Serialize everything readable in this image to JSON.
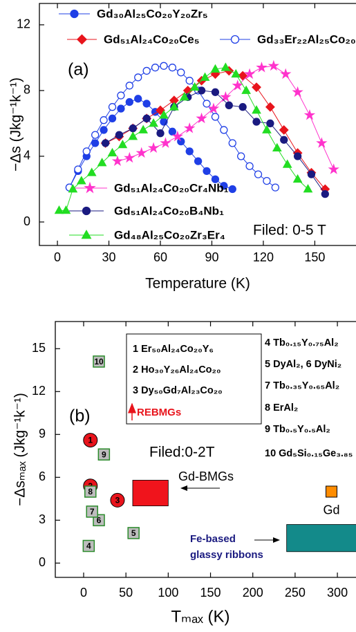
{
  "chart_data": [
    {
      "type": "line",
      "xlabel": "Temperature (K)",
      "ylabel": "−Δs (Jkg⁻¹k⁻¹)",
      "annotations": [
        "(a)",
        "Filed: 0-5 T"
      ],
      "xlim": [
        -10.5,
        174
      ],
      "ylim": [
        -1.43,
        13.3
      ],
      "xticks": [
        0,
        30,
        60,
        90,
        120,
        150
      ],
      "yticks": [
        0,
        4,
        8,
        12
      ],
      "series": [
        {
          "name": "Gd₃₀Al₂₅Co₂₀Y₂₀Zr₅",
          "color": "#1f3fe6",
          "marker": "circle",
          "filled": true,
          "x": [
            7,
            12,
            17,
            22,
            27,
            32,
            37,
            42,
            47,
            52,
            57,
            62,
            67,
            72,
            77,
            82,
            87,
            92,
            97,
            102
          ],
          "values": [
            2.1,
            3.1,
            4.0,
            4.8,
            5.6,
            6.3,
            6.9,
            7.3,
            7.5,
            7.2,
            6.7,
            6.1,
            5.5,
            4.9,
            4.3,
            3.7,
            3.1,
            2.6,
            2.2,
            2.0
          ]
        },
        {
          "name": "Gd₅₁Al₂₄Co₂₀Ce₅",
          "color": "#e8141c",
          "marker": "diamond",
          "filled": true,
          "x": [
            28,
            36,
            44,
            52,
            60,
            68,
            76,
            84,
            92,
            100,
            108,
            116,
            124,
            132,
            140,
            148,
            156
          ],
          "values": [
            4.8,
            5.2,
            5.7,
            6.3,
            6.8,
            7.4,
            8.0,
            8.6,
            9.0,
            9.2,
            8.9,
            8.2,
            7.0,
            5.6,
            4.2,
            3.0,
            2.0
          ]
        },
        {
          "name": "Gd₃₃Er₂₂Al₂₅Co₂₀",
          "color": "#1f3fe6",
          "marker": "circle",
          "filled": false,
          "x": [
            7,
            12,
            17,
            22,
            27,
            32,
            37,
            42,
            47,
            52,
            57,
            62,
            67,
            72,
            77,
            82,
            87,
            92,
            97,
            102,
            107,
            112,
            117,
            122,
            127
          ],
          "values": [
            2.1,
            3.2,
            4.3,
            5.3,
            6.2,
            7.0,
            7.7,
            8.3,
            8.8,
            9.2,
            9.4,
            9.5,
            9.4,
            9.1,
            8.6,
            8.0,
            7.2,
            6.4,
            5.6,
            4.8,
            4.0,
            3.4,
            2.9,
            2.5,
            2.1
          ]
        },
        {
          "name": "Gd₅₁Al₂₄Co₂₀Cr₄Nb₁",
          "color": "#ff33cc",
          "marker": "star",
          "filled": true,
          "x": [
            35,
            42,
            49,
            56,
            63,
            70,
            77,
            84,
            91,
            98,
            105,
            112,
            119,
            126,
            133,
            140,
            147,
            154,
            161
          ],
          "values": [
            3.7,
            3.9,
            4.2,
            4.5,
            4.8,
            5.2,
            5.7,
            6.3,
            6.9,
            7.6,
            8.3,
            9.0,
            9.4,
            9.5,
            9.0,
            7.9,
            6.5,
            4.8,
            3.2
          ]
        },
        {
          "name": "Gd₅₁Al₂₄Co₂₀B₄Nb₁",
          "color": "#1a1a80",
          "marker": "circle",
          "filled": true,
          "x": [
            28,
            36,
            44,
            52,
            60,
            68,
            76,
            84,
            92,
            100,
            108,
            116,
            124,
            132,
            140,
            148,
            156
          ],
          "values": [
            4.8,
            5.3,
            5.7,
            6.3,
            5.4,
            7.0,
            7.6,
            8.0,
            7.9,
            7.1,
            7.0,
            6.1,
            6.0,
            5.0,
            4.0,
            2.9,
            1.7
          ]
        },
        {
          "name": "Gd₄₈Al₂₅Co₂₀Zr₃Er₄",
          "color": "#22dd22",
          "marker": "triangle",
          "filled": true,
          "x": [
            1,
            5,
            9,
            14,
            20,
            26,
            32,
            38,
            44,
            50,
            56,
            62,
            68,
            74,
            80,
            86,
            92,
            98,
            104,
            110,
            116,
            122,
            128,
            134,
            140,
            146
          ],
          "values": [
            0.7,
            0.7,
            2.0,
            2.5,
            3.0,
            3.6,
            4.2,
            4.7,
            5.2,
            5.6,
            6.0,
            6.5,
            7.0,
            7.6,
            8.2,
            8.8,
            9.3,
            9.4,
            9.0,
            8.0,
            6.8,
            5.6,
            4.5,
            3.5,
            2.6,
            2.0
          ]
        }
      ]
    },
    {
      "type": "scatter",
      "xlabel": "Tₘₐₓ (K)",
      "ylabel": "−Δsₘₐₓ (Jkg⁻¹k⁻¹)",
      "annotations": [
        "(b)",
        "Filed:0-2T"
      ],
      "key_box": [
        "1 Er₅₀Al₂₄Co₂₀Y₆",
        "2 Ho₃₀Y₂₆Al₂₄Co₂₀",
        "3 Dy₅₀Gd₇Al₂₃Co₂₀"
      ],
      "key_list": [
        "4 Tb₀.₁₅Y₀.₇₅Al₂",
        "5 DyAl₂, 6 DyNi₂",
        "7 Tb₀.₃₅Y₀.₆₅Al₂",
        "8 ErAl₂",
        "9 Tb₀.₅Y₀.₅Al₂",
        "10 Gd₅Si₀.₁₅Ge₃.₈₅"
      ],
      "xlim": [
        -33.5,
        322
      ],
      "ylim": [
        -1,
        16.9
      ],
      "xticks": [
        0,
        50,
        100,
        150,
        200,
        250,
        300
      ],
      "yticks": [
        0,
        3,
        6,
        9,
        12,
        15
      ],
      "series": [
        {
          "name": "REBMGs",
          "color": "#e8141c",
          "marker": "circle",
          "labels": [
            "1",
            "2",
            "3"
          ],
          "x": [
            8,
            8,
            40
          ],
          "values": [
            8.6,
            5.4,
            4.4
          ]
        },
        {
          "color": "#bdbdbd",
          "edge": "#2a8a2a",
          "marker": "square",
          "labels": [
            "4",
            "5",
            "6",
            "7",
            "8",
            "9",
            "10"
          ],
          "x": [
            6,
            59,
            18,
            10,
            8,
            24,
            18
          ],
          "values": [
            1.2,
            2.1,
            3.0,
            3.6,
            5.0,
            7.6,
            14.1
          ]
        },
        {
          "name": "Gd",
          "color": "#ff8c00",
          "marker": "square",
          "x": [
            293
          ],
          "values": [
            5.0
          ]
        }
      ],
      "regions": [
        {
          "name": [
            "Gd-BMGs"
          ],
          "color": "#f0141c",
          "x": [
            58,
            100
          ],
          "y": [
            4.0,
            5.8
          ]
        },
        {
          "name": [
            "Fe-based",
            "glassy ribbons"
          ],
          "color": "#138a8a",
          "x": [
            240,
            330
          ],
          "y": [
            0.8,
            2.7
          ]
        }
      ]
    }
  ]
}
